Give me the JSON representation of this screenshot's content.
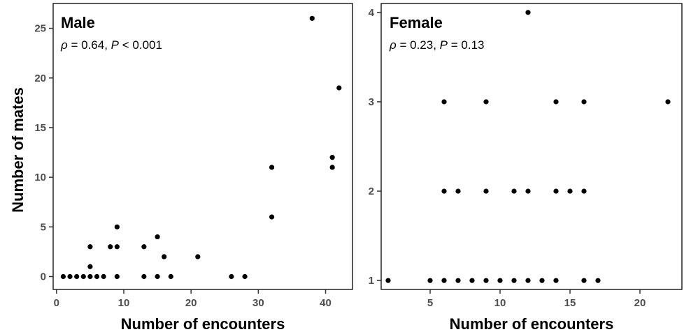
{
  "chart_data": [
    {
      "type": "scatter",
      "title": "Male",
      "stat_rho": "ρ",
      "stat_rho_value": " = 0.64, ",
      "stat_p": "P",
      "stat_p_value": " < 0.001",
      "xlabel": "Number of encounters",
      "ylabel": "Number of mates",
      "xlim": [
        -0.5,
        44
      ],
      "ylim": [
        -1.3,
        27.5
      ],
      "xticks": [
        0,
        10,
        20,
        30,
        40
      ],
      "yticks": [
        0,
        5,
        10,
        15,
        20,
        25
      ],
      "points": [
        [
          1,
          0
        ],
        [
          2,
          0
        ],
        [
          3,
          0
        ],
        [
          4,
          0
        ],
        [
          5,
          0
        ],
        [
          6,
          0
        ],
        [
          7,
          0
        ],
        [
          9,
          0
        ],
        [
          13,
          0
        ],
        [
          15,
          0
        ],
        [
          17,
          0
        ],
        [
          26,
          0
        ],
        [
          28,
          0
        ],
        [
          5,
          1
        ],
        [
          16,
          2
        ],
        [
          21,
          2
        ],
        [
          5,
          3
        ],
        [
          8,
          3
        ],
        [
          9,
          3
        ],
        [
          13,
          3
        ],
        [
          15,
          4
        ],
        [
          9,
          5
        ],
        [
          32,
          6
        ],
        [
          32,
          11
        ],
        [
          41,
          11
        ],
        [
          41,
          12
        ],
        [
          42,
          19
        ],
        [
          38,
          26
        ]
      ]
    },
    {
      "type": "scatter",
      "title": "Female",
      "stat_rho": "ρ",
      "stat_rho_value": " = 0.23, ",
      "stat_p": "P",
      "stat_p_value": " = 0.13",
      "xlabel": "Number of encounters",
      "ylabel": "",
      "xlim": [
        1.5,
        23
      ],
      "ylim": [
        0.9,
        4.1
      ],
      "xticks": [
        5,
        10,
        15,
        20
      ],
      "yticks": [
        1,
        2,
        3,
        4
      ],
      "points": [
        [
          2,
          1
        ],
        [
          5,
          1
        ],
        [
          6,
          1
        ],
        [
          7,
          1
        ],
        [
          8,
          1
        ],
        [
          9,
          1
        ],
        [
          10,
          1
        ],
        [
          11,
          1
        ],
        [
          12,
          1
        ],
        [
          13,
          1
        ],
        [
          14,
          1
        ],
        [
          16,
          1
        ],
        [
          17,
          1
        ],
        [
          6,
          2
        ],
        [
          7,
          2
        ],
        [
          9,
          2
        ],
        [
          11,
          2
        ],
        [
          12,
          2
        ],
        [
          14,
          2
        ],
        [
          15,
          2
        ],
        [
          16,
          2
        ],
        [
          6,
          3
        ],
        [
          9,
          3
        ],
        [
          14,
          3
        ],
        [
          16,
          3
        ],
        [
          22,
          3
        ],
        [
          12,
          4
        ]
      ]
    }
  ]
}
